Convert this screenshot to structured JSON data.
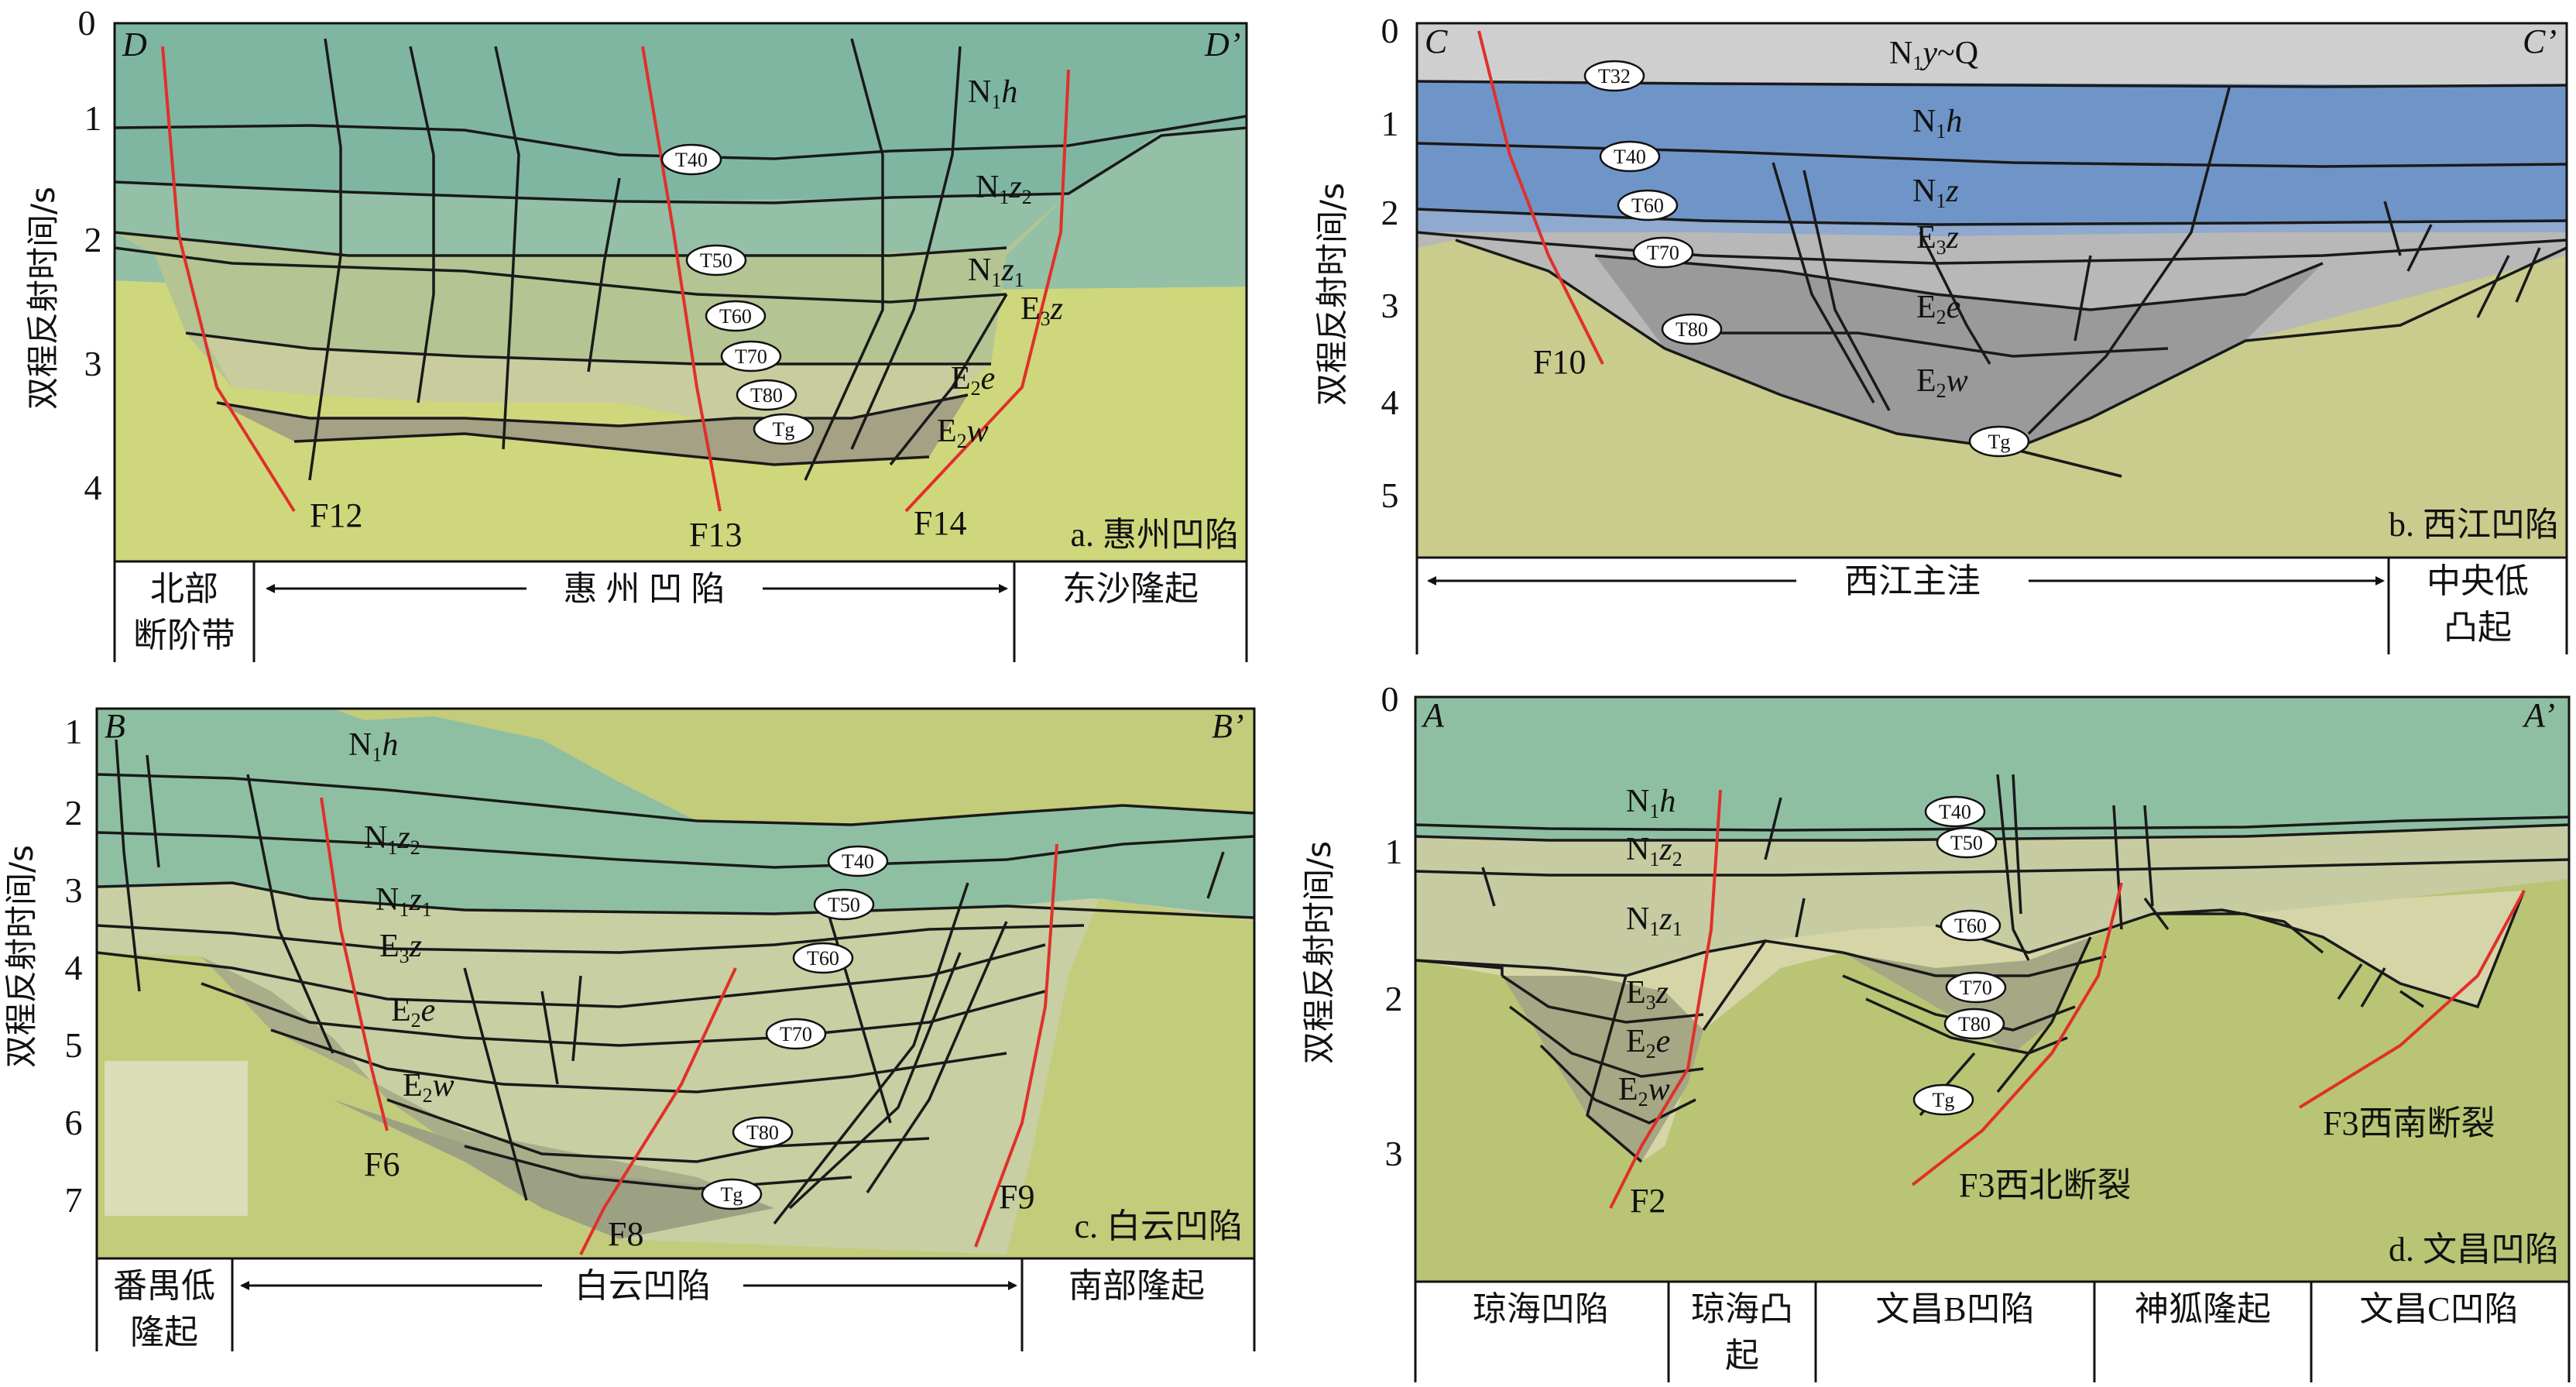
{
  "y_axis_label": "双程反射时间/s",
  "panels": {
    "a": {
      "corner_left": "D",
      "corner_right": "D’",
      "title": "a. 惠州凹陷",
      "ticks": [
        "0",
        "1",
        "2",
        "3",
        "4"
      ],
      "layers": {
        "l1": "N",
        "l1s": "1",
        "l1i": "h",
        "l2": "N",
        "l2s": "1",
        "l2i": "z",
        "l2s2": "2",
        "l3": "N",
        "l3s": "1",
        "l3i": "z",
        "l3s2": "1",
        "l4": "E",
        "l4s": "3",
        "l4i": "z",
        "l5": "E",
        "l5s": "2",
        "l5i": "e",
        "l6": "E",
        "l6s": "2",
        "l6i": "w"
      },
      "horizons": [
        "T40",
        "T50",
        "T60",
        "T70",
        "T80",
        "Tg"
      ],
      "faults": [
        "F12",
        "F13",
        "F14"
      ],
      "units": [
        "北部",
        "断阶带",
        "惠 州 凹 陷",
        "东沙隆起"
      ]
    },
    "b": {
      "corner_left": "C",
      "corner_right": "C’",
      "title": "b. 西江凹陷",
      "ticks": [
        "0",
        "1",
        "2",
        "3",
        "4",
        "5"
      ],
      "layers": {
        "l0": "N",
        "l0s": "1",
        "l0i": "y",
        "l0t": "~Q",
        "l1": "N",
        "l1s": "1",
        "l1i": "h",
        "l2": "N",
        "l2s": "1",
        "l2i": "z",
        "l3": "E",
        "l3s": "3",
        "l3i": "z",
        "l4": "E",
        "l4s": "2",
        "l4i": "e",
        "l5": "E",
        "l5s": "2",
        "l5i": "w"
      },
      "horizons": [
        "T32",
        "T40",
        "T60",
        "T70",
        "T80",
        "Tg"
      ],
      "faults": [
        "F10"
      ],
      "units": [
        "西江主洼",
        "中央低",
        "凸起"
      ]
    },
    "c": {
      "corner_left": "B",
      "corner_right": "B’",
      "title": "c. 白云凹陷",
      "ticks": [
        "1",
        "2",
        "3",
        "4",
        "5",
        "6",
        "7"
      ],
      "layers": {
        "l1": "N",
        "l1s": "1",
        "l1i": "h",
        "l2": "N",
        "l2s": "1",
        "l2i": "z",
        "l2s2": "2",
        "l3": "N",
        "l3s": "1",
        "l3i": "z",
        "l3s2": "1",
        "l4": "E",
        "l4s": "3",
        "l4i": "z",
        "l5": "E",
        "l5s": "2",
        "l5i": "e",
        "l6": "E",
        "l6s": "2",
        "l6i": "w"
      },
      "horizons": [
        "T40",
        "T50",
        "T60",
        "T70",
        "T80",
        "Tg"
      ],
      "faults": [
        "F6",
        "F8",
        "F9"
      ],
      "units": [
        "番禺低",
        "隆起",
        "白云凹陷",
        "南部隆起"
      ]
    },
    "d": {
      "corner_left": "A",
      "corner_right": "A’",
      "title": "d. 文昌凹陷",
      "ticks": [
        "0",
        "1",
        "2",
        "3"
      ],
      "layers": {
        "l1": "N",
        "l1s": "1",
        "l1i": "h",
        "l2": "N",
        "l2s": "1",
        "l2i": "z",
        "l2s2": "2",
        "l3": "N",
        "l3s": "1",
        "l3i": "z",
        "l3s2": "1",
        "l4": "E",
        "l4s": "3",
        "l4i": "z",
        "l5": "E",
        "l5s": "2",
        "l5i": "e",
        "l6": "E",
        "l6s": "2",
        "l6i": "w"
      },
      "horizons": [
        "T40",
        "T50",
        "T60",
        "T70",
        "T80",
        "Tg"
      ],
      "faults": [
        "F2",
        "F3西北断裂",
        "F3西南断裂"
      ],
      "units": [
        "琼海凹陷",
        "琼海凸",
        "起",
        "文昌B凹陷",
        "神狐隆起",
        "文昌C凹陷"
      ]
    }
  }
}
